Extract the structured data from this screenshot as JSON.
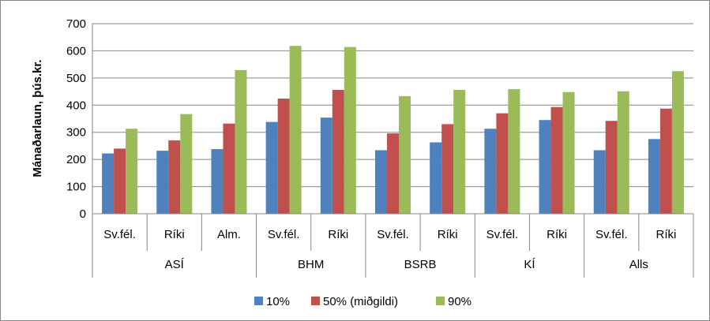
{
  "chart_data": {
    "type": "bar",
    "ylabel": "Mánaðarlaun, þús.kr.",
    "xlabel": "",
    "ylim": [
      0,
      700
    ],
    "yticks": [
      0,
      100,
      200,
      300,
      400,
      500,
      600,
      700
    ],
    "grid": true,
    "legend_position": "bottom",
    "groups": [
      {
        "label": "ASÍ",
        "categories": [
          "Sv.fél.",
          "Ríki",
          "Alm."
        ]
      },
      {
        "label": "BHM",
        "categories": [
          "Sv.fél.",
          "Ríki"
        ]
      },
      {
        "label": "BSRB",
        "categories": [
          "Sv.fél.",
          "Ríki"
        ]
      },
      {
        "label": "KÍ",
        "categories": [
          "Sv.fél.",
          "Ríki"
        ]
      },
      {
        "label": "Alls",
        "categories": [
          "Sv.fél.",
          "Ríki"
        ]
      }
    ],
    "series": [
      {
        "name": "10%",
        "color": "#4F81BD",
        "values": [
          222,
          232,
          238,
          338,
          354,
          234,
          263,
          313,
          345,
          234,
          275
        ]
      },
      {
        "name": "50% (miðgildi)",
        "color": "#C0504D",
        "values": [
          240,
          270,
          332,
          424,
          456,
          296,
          330,
          370,
          393,
          342,
          387
        ]
      },
      {
        "name": "90%",
        "color": "#9BBB59",
        "values": [
          313,
          367,
          529,
          618,
          614,
          433,
          456,
          459,
          448,
          451,
          525
        ]
      }
    ]
  }
}
